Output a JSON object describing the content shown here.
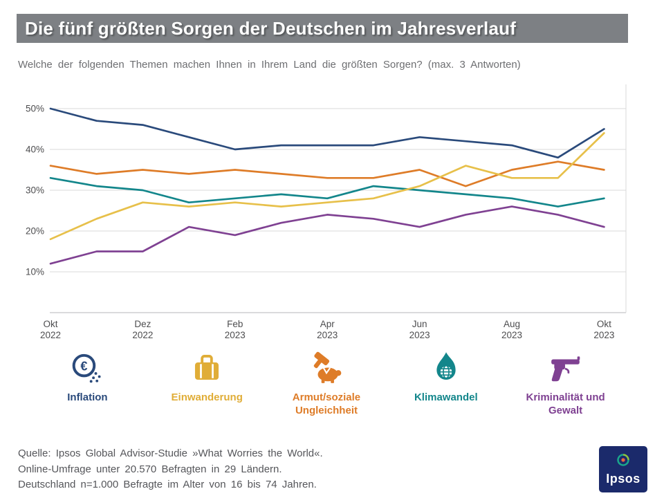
{
  "header": {
    "title": "Die fünf größten Sorgen der Deutschen im Jahresverlauf",
    "subtitle": "Welche der folgenden Themen machen Ihnen in Ihrem Land die größten Sorgen? (max. 3 Antworten)"
  },
  "chart_data": {
    "type": "line",
    "title": "Die fünf größten Sorgen der Deutschen im Jahresverlauf",
    "x": [
      "Okt 2022",
      "Nov 2022",
      "Dez 2022",
      "Jan 2023",
      "Feb 2023",
      "Mär 2023",
      "Apr 2023",
      "Mai 2023",
      "Jun 2023",
      "Jul 2023",
      "Aug 2023",
      "Sep 2023",
      "Okt 2023"
    ],
    "x_tick_indices": [
      0,
      2,
      4,
      6,
      8,
      10,
      12
    ],
    "x_tick_labels": [
      [
        "Okt",
        "2022"
      ],
      [
        "Dez",
        "2022"
      ],
      [
        "Feb",
        "2023"
      ],
      [
        "Apr",
        "2023"
      ],
      [
        "Jun",
        "2023"
      ],
      [
        "Aug",
        "2023"
      ],
      [
        "Okt",
        "2023"
      ]
    ],
    "yticks": [
      10,
      20,
      30,
      40,
      50
    ],
    "ylim": [
      0,
      55
    ],
    "unit": "%",
    "grid": "horizontal",
    "legend_position": "bottom",
    "series": [
      {
        "name": "Armut/soziale Ungleichheit",
        "color": "#de7c28",
        "values": [
          36,
          34,
          35,
          34,
          35,
          34,
          33,
          33,
          35,
          31,
          35,
          37,
          35
        ]
      },
      {
        "name": "Klimawandel",
        "color": "#13868b",
        "values": [
          33,
          31,
          30,
          27,
          28,
          29,
          28,
          31,
          30,
          29,
          28,
          26,
          28
        ]
      },
      {
        "name": "Einwanderung",
        "color": "#e7c04a",
        "values": [
          18,
          23,
          27,
          26,
          27,
          26,
          27,
          28,
          31,
          36,
          33,
          33,
          44
        ]
      },
      {
        "name": "Kriminalität und Gewalt",
        "color": "#7f4192",
        "values": [
          12,
          15,
          15,
          21,
          19,
          22,
          24,
          23,
          21,
          24,
          26,
          24,
          21
        ]
      },
      {
        "name": "Inflation",
        "color": "#2a4a7b",
        "values": [
          50,
          47,
          46,
          43,
          40,
          41,
          41,
          41,
          43,
          42,
          41,
          38,
          45
        ]
      }
    ]
  },
  "legend": {
    "items": [
      {
        "label": "Inflation",
        "color": "#2a4a7b",
        "icon": "euro-coin-icon"
      },
      {
        "label": "Einwanderung",
        "color": "#e0ad37",
        "icon": "suitcase-icon"
      },
      {
        "label": "Armut/soziale Ungleichheit",
        "color": "#de7c28",
        "icon": "gavel-piggy-bank-icon"
      },
      {
        "label": "Klimawandel",
        "color": "#13868b",
        "icon": "flame-globe-icon"
      },
      {
        "label": "Kriminalität und Gewalt",
        "color": "#7f4192",
        "icon": "revolver-icon"
      }
    ]
  },
  "footer": {
    "lines": [
      "Quelle: Ipsos Global Advisor-Studie »What Worries the World«.",
      "Online-Umfrage unter 20.570 Befragten in 29 Ländern.",
      "Deutschland n=1.000 Befragte im Alter von 16 bis 74 Jahren."
    ]
  },
  "logo": {
    "text": "Ipsos"
  }
}
